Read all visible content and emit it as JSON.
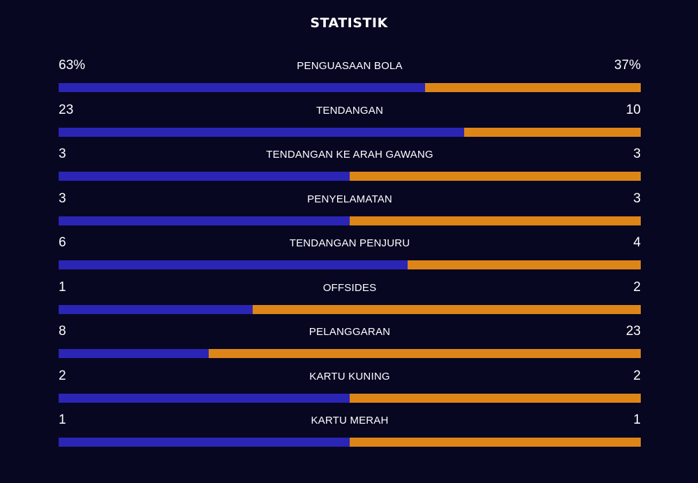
{
  "title": "STATISTIK",
  "colors": {
    "background": "#070722",
    "home": "#2b25b5",
    "away": "#de8518"
  },
  "stats": [
    {
      "label": "PENGUASAAN BOLA",
      "home": "63%",
      "away": "37%",
      "home_share": 0.63
    },
    {
      "label": "TENDANGAN",
      "home": "23",
      "away": "10",
      "home_share": 0.697
    },
    {
      "label": "TENDANGAN KE ARAH GAWANG",
      "home": "3",
      "away": "3",
      "home_share": 0.5
    },
    {
      "label": "PENYELAMATAN",
      "home": "3",
      "away": "3",
      "home_share": 0.5
    },
    {
      "label": "TENDANGAN PENJURU",
      "home": "6",
      "away": "4",
      "home_share": 0.6
    },
    {
      "label": "OFFSIDES",
      "home": "1",
      "away": "2",
      "home_share": 0.333
    },
    {
      "label": "PELANGGARAN",
      "home": "8",
      "away": "23",
      "home_share": 0.258
    },
    {
      "label": "KARTU KUNING",
      "home": "2",
      "away": "2",
      "home_share": 0.5
    },
    {
      "label": "KARTU MERAH",
      "home": "1",
      "away": "1",
      "home_share": 0.5
    }
  ]
}
